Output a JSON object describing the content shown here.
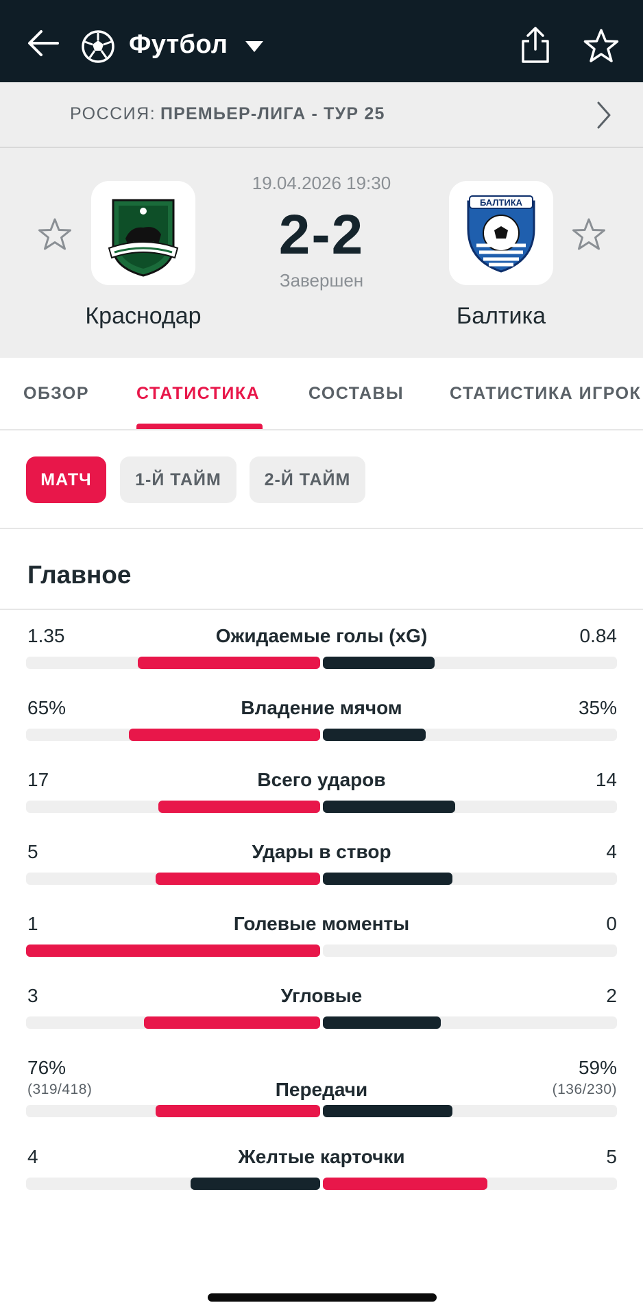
{
  "header": {
    "title": "Футбол"
  },
  "league": {
    "country": "РОССИЯ:",
    "name": "ПРЕМЬЕР-ЛИГА - ТУР 25"
  },
  "match": {
    "datetime": "19.04.2026 19:30",
    "score": "2-2",
    "status": "Завершен",
    "home_team": "Краснодар",
    "away_team": "Балтика"
  },
  "tabs": [
    {
      "label": "ОБЗОР"
    },
    {
      "label": "СТАТИСТИКА"
    },
    {
      "label": "СОСТАВЫ"
    },
    {
      "label": "СТАТИСТИКА ИГРОК"
    }
  ],
  "periods": [
    {
      "label": "МАТЧ"
    },
    {
      "label": "1-Й ТАЙМ"
    },
    {
      "label": "2-Й ТАЙМ"
    }
  ],
  "section_title": "Главное",
  "colors": {
    "accent": "#e8174a",
    "dark": "#15242c",
    "header_bg": "#0f1d26"
  },
  "stats": [
    {
      "label": "Ожидаемые голы (xG)",
      "home": "1.35",
      "away": "0.84",
      "home_ratio": 0.62,
      "away_ratio": 0.38,
      "leader": "home"
    },
    {
      "label": "Владение мячом",
      "home": "65%",
      "away": "35%",
      "home_ratio": 0.65,
      "away_ratio": 0.35,
      "leader": "home"
    },
    {
      "label": "Всего ударов",
      "home": "17",
      "away": "14",
      "home_ratio": 0.55,
      "away_ratio": 0.45,
      "leader": "home"
    },
    {
      "label": "Удары в створ",
      "home": "5",
      "away": "4",
      "home_ratio": 0.56,
      "away_ratio": 0.44,
      "leader": "home"
    },
    {
      "label": "Голевые моменты",
      "home": "1",
      "away": "0",
      "home_ratio": 1.0,
      "away_ratio": 0.0,
      "leader": "home"
    },
    {
      "label": "Угловые",
      "home": "3",
      "away": "2",
      "home_ratio": 0.6,
      "away_ratio": 0.4,
      "leader": "home"
    },
    {
      "label": "Передачи",
      "home": "76%",
      "home_sub": "(319/418)",
      "away": "59%",
      "away_sub": "(136/230)",
      "home_ratio": 0.56,
      "away_ratio": 0.44,
      "leader": "home"
    },
    {
      "label": "Желтые карточки",
      "home": "4",
      "away": "5",
      "home_ratio": 0.44,
      "away_ratio": 0.56,
      "leader": "away"
    }
  ]
}
